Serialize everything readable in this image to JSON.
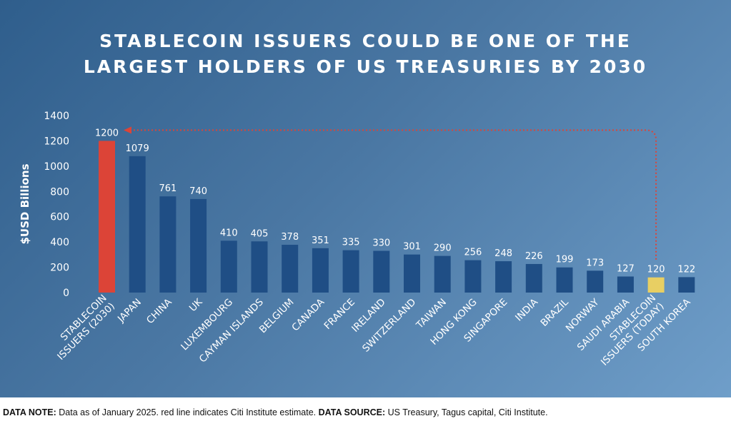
{
  "title_line1": "STABLECOIN ISSUERS COULD BE ONE OF THE",
  "title_line2": "LARGEST HOLDERS OF US TREASURIES BY 2030",
  "note": {
    "label1": "DATA NOTE:",
    "text1": " Data as of January 2025. red line indicates Citi Institute estimate. ",
    "label2": "DATA SOURCE:",
    "text2": " US Treasury, Tagus capital, Citi Institute."
  },
  "colors": {
    "bar_default": "#1f4e85",
    "bar_estimate": "#dc4437",
    "bar_today": "#e8cf63",
    "arrow": "#dc4437"
  },
  "chart_data": {
    "type": "bar",
    "ylabel": "$USD Billions",
    "xlabel": "",
    "ylim": [
      0,
      1400
    ],
    "yticks": [
      0,
      200,
      400,
      600,
      800,
      1000,
      1200,
      1400
    ],
    "grid": false,
    "categories": [
      "STABLECOIN\nISSUERS (2030)",
      "JAPAN",
      "CHINA",
      "UK",
      "LUXEMBOURG",
      "CAYMAN ISLANDS",
      "BELGIUM",
      "CANADA",
      "FRANCE",
      "IRELAND",
      "SWITZERLAND",
      "TAIWAN",
      "HONG KONG",
      "SINGAPORE",
      "INDIA",
      "BRAZIL",
      "NORWAY",
      "SAUDI ARABIA",
      "STABLECOIN\nISSUERS (TODAY)",
      "SOUTH KOREA"
    ],
    "values": [
      1200,
      1079,
      761,
      740,
      410,
      405,
      378,
      351,
      335,
      330,
      301,
      290,
      256,
      248,
      226,
      199,
      173,
      127,
      120,
      122
    ],
    "highlight": {
      "estimate_index": 0,
      "today_index": 18
    },
    "annotation": "red line indicates Citi Institute estimate",
    "arrow": {
      "from_index": 18,
      "to_index": 0
    }
  }
}
